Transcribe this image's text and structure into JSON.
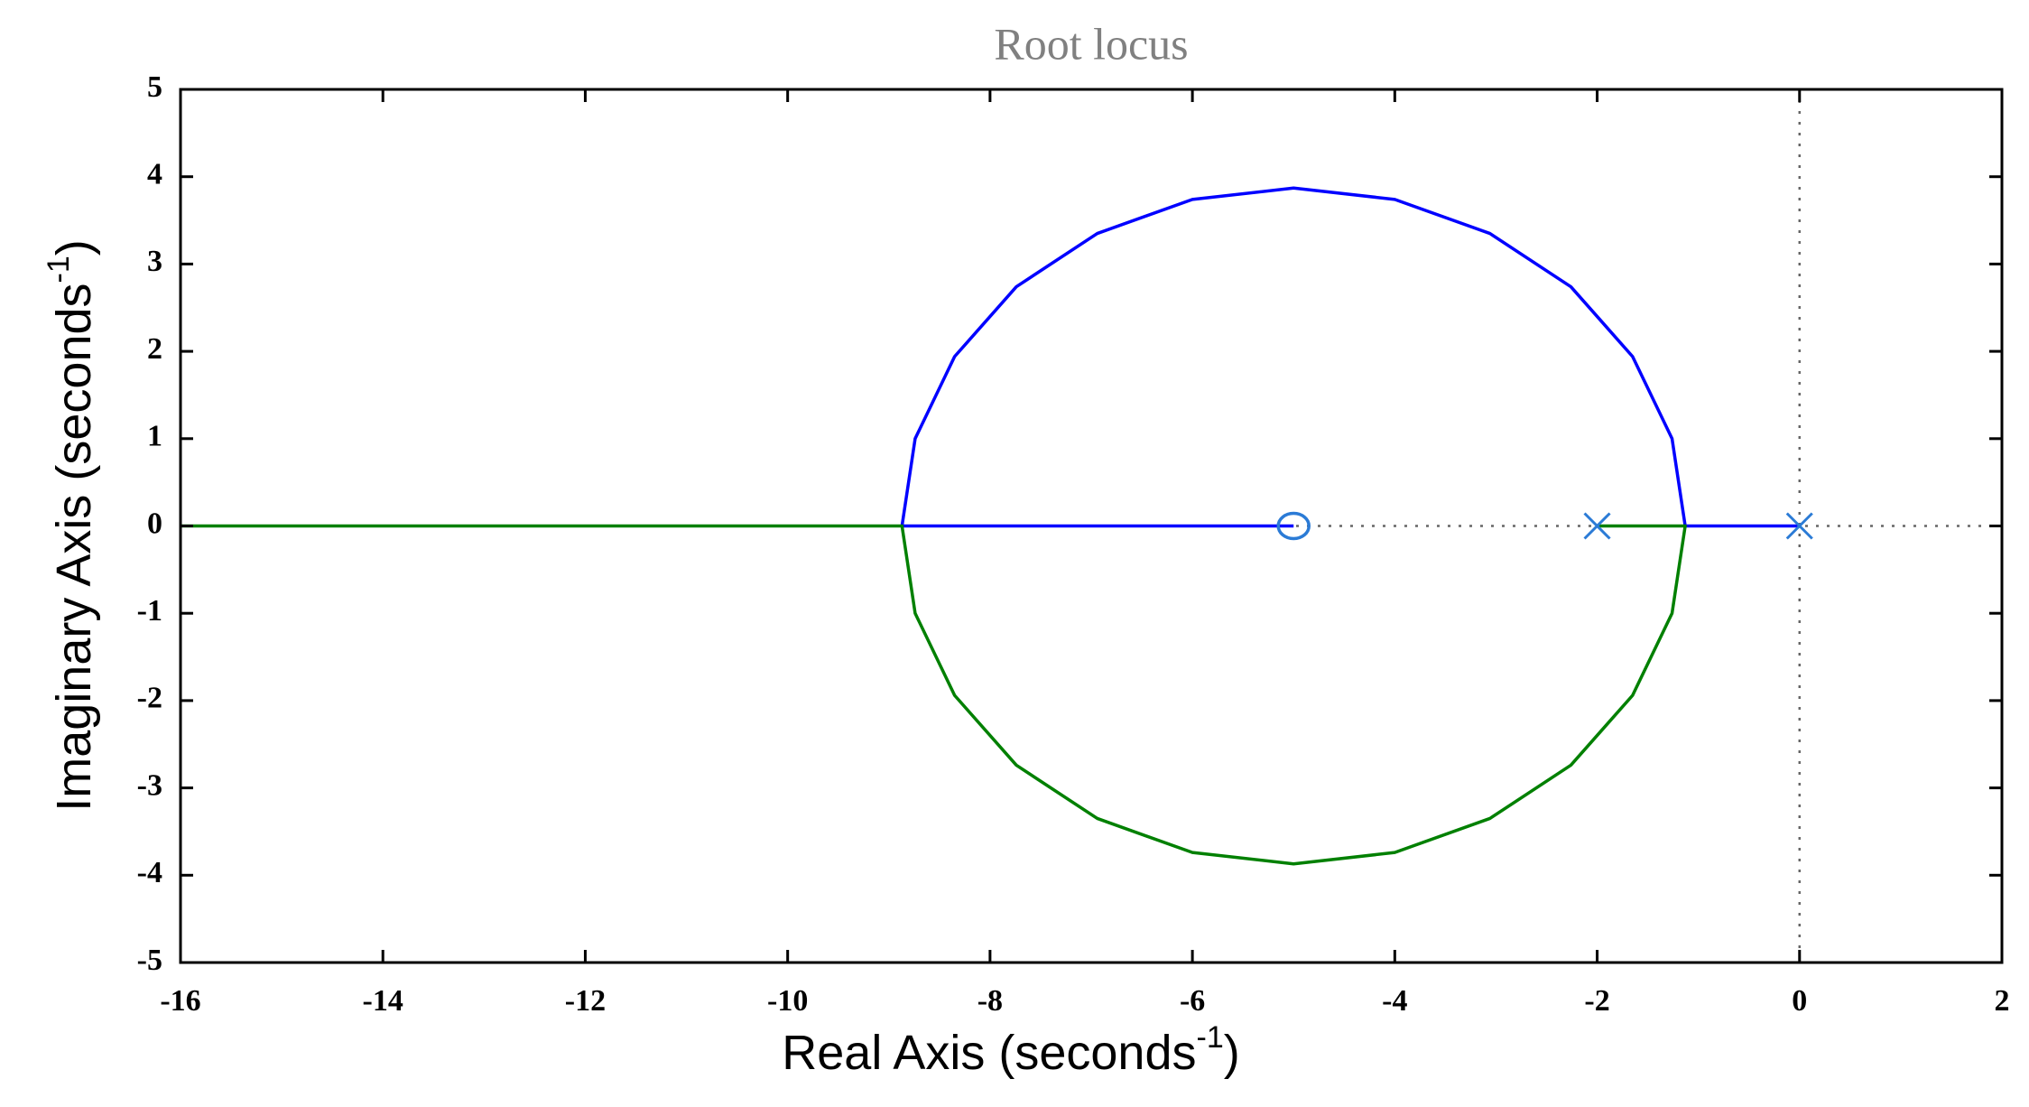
{
  "chart_data": {
    "type": "rootlocus",
    "title": "Root locus",
    "x_label": {
      "text": "Real Axis (seconds",
      "sup": "-1",
      "end": ")"
    },
    "y_label": {
      "text": "Imaginary Axis (seconds",
      "sup": "-1",
      "end": ")"
    },
    "xlim": [
      -16,
      2
    ],
    "ylim": [
      -5,
      5
    ],
    "xticks": [
      -16,
      -14,
      -12,
      -10,
      -8,
      -6,
      -4,
      -2,
      0,
      2
    ],
    "yticks": [
      -5,
      -4,
      -3,
      -2,
      -1,
      0,
      1,
      2,
      3,
      4,
      5
    ],
    "series": [
      {
        "color": "#0000ff",
        "x": [
          0,
          -1.13,
          -1.26,
          -1.65,
          -2.26,
          -3.06,
          -4.0,
          -5,
          -6.0,
          -6.94,
          -7.74,
          -8.35,
          -8.74,
          -8.87,
          -5
        ],
        "y": [
          0,
          0,
          1.0,
          1.94,
          2.74,
          3.35,
          3.74,
          3.87,
          3.74,
          3.35,
          2.74,
          1.94,
          1.0,
          0,
          0
        ]
      },
      {
        "color": "#008000",
        "x": [
          -2,
          -1.13,
          -1.26,
          -1.65,
          -2.26,
          -3.06,
          -4.0,
          -5,
          -6.0,
          -6.94,
          -7.74,
          -8.35,
          -8.74,
          -8.87,
          -16
        ],
        "y": [
          0,
          0,
          -1.0,
          -1.94,
          -2.74,
          -3.35,
          -3.74,
          -3.87,
          -3.74,
          -3.35,
          -2.74,
          -1.94,
          -1.0,
          0,
          0
        ]
      }
    ],
    "poles": {
      "color": "#2b7bd6",
      "x": [
        0,
        -2
      ],
      "y": [
        0,
        0
      ]
    },
    "zeros": {
      "color": "#2b7bd6",
      "x": [
        -5
      ],
      "y": [
        0
      ]
    }
  }
}
